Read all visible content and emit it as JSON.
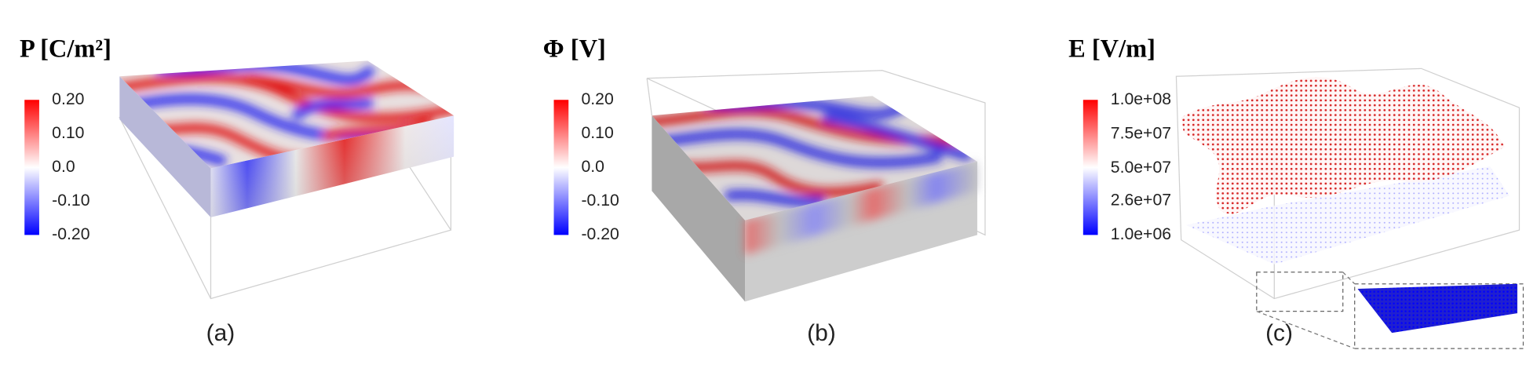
{
  "panels": [
    {
      "title": "P [C/m²]",
      "label": "(a)",
      "colorbar": {
        "lim": [
          -0.2,
          0.2
        ],
        "ticks": [
          {
            "value": 0.2,
            "label": "0.20"
          },
          {
            "value": 0.1,
            "label": "0.10"
          },
          {
            "value": 0,
            "label": "0.0"
          },
          {
            "value": -0.1,
            "label": "-0.10"
          },
          {
            "value": -0.2,
            "label": "-0.20"
          }
        ]
      }
    },
    {
      "title": "Φ [V]",
      "label": "(b)",
      "colorbar": {
        "lim": [
          -0.2,
          0.2
        ],
        "ticks": [
          {
            "value": 0.2,
            "label": "0.20"
          },
          {
            "value": 0.1,
            "label": "0.10"
          },
          {
            "value": 0,
            "label": "0.0"
          },
          {
            "value": -0.1,
            "label": "-0.10"
          },
          {
            "value": -0.2,
            "label": "-0.20"
          }
        ]
      }
    },
    {
      "title": "E [V/m]",
      "label": "(c)",
      "colorbar": {
        "lim": [
          1000000,
          100000000
        ],
        "ticks": [
          {
            "value": 100000000,
            "label": "1.0e+08"
          },
          {
            "value": 75000000,
            "label": "7.5e+07"
          },
          {
            "value": 50000000,
            "label": "5.0e+07"
          },
          {
            "value": 26000000,
            "label": "2.6e+07"
          },
          {
            "value": 1000000,
            "label": "1.0e+06"
          }
        ]
      }
    }
  ]
}
